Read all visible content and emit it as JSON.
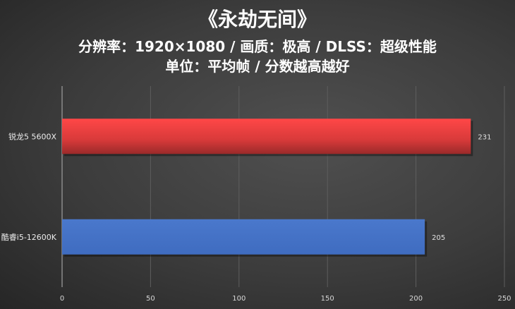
{
  "chart_data": {
    "type": "bar",
    "orientation": "horizontal",
    "title": "《永劫无间》",
    "subtitle": "分辨率：1920×1080 / 画质：极高 / DLSS：超级性能",
    "subtitle2": "单位：平均帧 / 分数越高越好",
    "categories": [
      "锐龙5 5600X",
      "酷睿i5-12600K"
    ],
    "values": [
      231,
      205
    ],
    "colors": [
      "#e23c3c",
      "#4472c4"
    ],
    "xlim": [
      0,
      250
    ],
    "xticks": [
      0,
      50,
      100,
      150,
      200,
      250
    ],
    "grid": true
  }
}
